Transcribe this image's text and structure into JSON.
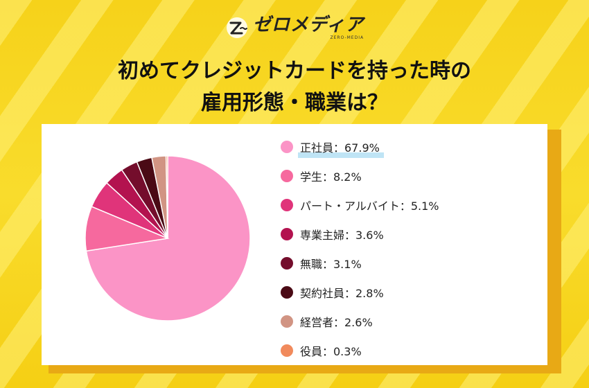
{
  "brand": {
    "name": "ゼロメディア",
    "sub": "ZERO-MEDIA"
  },
  "title": {
    "line1": "初めてクレジットカードを持った時の",
    "line2": "雇用形態・職業は？"
  },
  "colors": {
    "background": "#f7d51a",
    "card": "#ffffff",
    "highlight": "#bfe4f5"
  },
  "chart_data": {
    "type": "pie",
    "slices": [
      {
        "label": "正社員",
        "value": 67.9,
        "display": "正社員：67.9%",
        "color": "#fb94c6"
      },
      {
        "label": "学生",
        "value": 8.2,
        "display": "学生：8.2%",
        "color": "#f6699e"
      },
      {
        "label": "パート・アルバイト",
        "value": 5.1,
        "display": "パート・アルバイト：5.1%",
        "color": "#e0347a"
      },
      {
        "label": "専業主婦",
        "value": 3.6,
        "display": "専業主婦：3.6%",
        "color": "#b3124f"
      },
      {
        "label": "無職",
        "value": 3.1,
        "display": "無職：3.1%",
        "color": "#740d2c"
      },
      {
        "label": "契約社員",
        "value": 2.8,
        "display": "契約社員：2.8%",
        "color": "#4a0a15"
      },
      {
        "label": "経営者",
        "value": 2.6,
        "display": "経営者：2.6%",
        "color": "#d19483"
      },
      {
        "label": "役員",
        "value": 0.3,
        "display": "役員：0.3%",
        "color": "#f18a5c"
      }
    ],
    "start_angle_deg": 0,
    "direction": "clockwise",
    "legend_position": "right",
    "highlighted_entry": "正社員"
  }
}
